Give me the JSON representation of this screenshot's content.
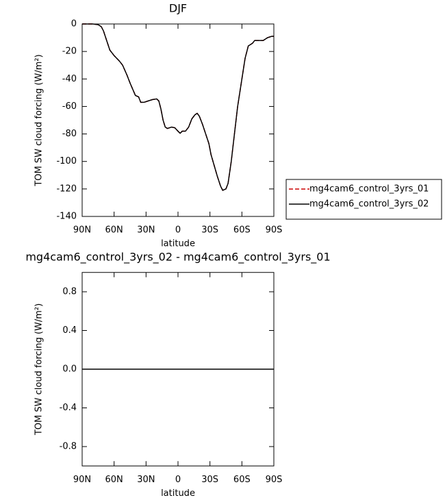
{
  "chart_data": [
    {
      "type": "line",
      "title": "DJF",
      "xlabel": "latitude",
      "ylabel": "TOM SW cloud forcing (W/m²)",
      "x": [
        90,
        80,
        75,
        72,
        70,
        67,
        64,
        60,
        55,
        52,
        48,
        45,
        40,
        37,
        35,
        32,
        28,
        24,
        20,
        18,
        16,
        14,
        12,
        10,
        6,
        3,
        0,
        -2,
        -4,
        -7,
        -10,
        -13,
        -16,
        -18,
        -20,
        -23,
        -26,
        -29,
        -31,
        -34,
        -37,
        -40,
        -42,
        -45,
        -47,
        -50,
        -53,
        -56,
        -60,
        -63,
        -66,
        -70,
        -72,
        -76,
        -80,
        -84,
        -88,
        -90
      ],
      "series": [
        {
          "name": "mg4cam6_control_3yrs_01",
          "color": "#cc0000",
          "line_style": "dashed",
          "values": [
            0,
            0,
            -0.5,
            -2,
            -5,
            -12,
            -19,
            -23,
            -27,
            -30,
            -37,
            -43,
            -52,
            -53,
            -57,
            -57,
            -56,
            -55,
            -54.5,
            -56,
            -62,
            -70,
            -75,
            -76,
            -75,
            -75.5,
            -78,
            -79.5,
            -78,
            -78,
            -75,
            -69,
            -66,
            -65,
            -67,
            -73,
            -80,
            -87,
            -95,
            -103,
            -111,
            -118,
            -121,
            -120,
            -116,
            -100,
            -80,
            -60,
            -40,
            -25,
            -16,
            -14,
            -12,
            -12,
            -12,
            -10,
            -9,
            -9
          ]
        },
        {
          "name": "mg4cam6_control_3yrs_02",
          "color": "#000000",
          "line_style": "solid",
          "values": [
            0,
            0,
            -0.5,
            -2,
            -5,
            -12,
            -19,
            -23,
            -27,
            -30,
            -37,
            -43,
            -52,
            -53,
            -57,
            -57,
            -56,
            -55,
            -54.5,
            -56,
            -62,
            -70,
            -75,
            -76,
            -75,
            -75.5,
            -78,
            -79.5,
            -78,
            -78,
            -75,
            -69,
            -66,
            -65,
            -67,
            -73,
            -80,
            -87,
            -95,
            -103,
            -111,
            -118,
            -121,
            -120,
            -116,
            -100,
            -80,
            -60,
            -40,
            -25,
            -16,
            -14,
            -12,
            -12,
            -12,
            -10,
            -9,
            -9
          ]
        }
      ],
      "xlim": [
        90,
        -90
      ],
      "xticks": [
        {
          "value": 90,
          "label": "90N"
        },
        {
          "value": 60,
          "label": "60N"
        },
        {
          "value": 30,
          "label": "30N"
        },
        0,
        {
          "value": -30,
          "label": "30S"
        },
        {
          "value": -60,
          "label": "60S"
        },
        {
          "value": -90,
          "label": "90S"
        }
      ],
      "ylim": [
        -140,
        0
      ],
      "yticks": [
        -140,
        -120,
        -100,
        -80,
        -60,
        -40,
        -20,
        0
      ],
      "legend": "right"
    },
    {
      "type": "line",
      "title": "mg4cam6_control_3yrs_02 - mg4cam6_control_3yrs_01",
      "xlabel": "latitude",
      "ylabel": "TOM SW cloud forcing (W/m²)",
      "x": [
        90,
        -90
      ],
      "values": [
        0,
        0
      ],
      "color": "#000000",
      "xlim": [
        90,
        -90
      ],
      "xticks": [
        {
          "value": 90,
          "label": "90N"
        },
        {
          "value": 60,
          "label": "60N"
        },
        {
          "value": 30,
          "label": "30N"
        },
        0,
        {
          "value": -30,
          "label": "30S"
        },
        {
          "value": -60,
          "label": "60S"
        },
        {
          "value": -90,
          "label": "90S"
        }
      ],
      "ylim": [
        -1,
        1
      ],
      "yticks": [
        -0.8,
        -0.4,
        {
          "value": 0,
          "label": "0.0"
        },
        0.4,
        0.8
      ]
    }
  ]
}
